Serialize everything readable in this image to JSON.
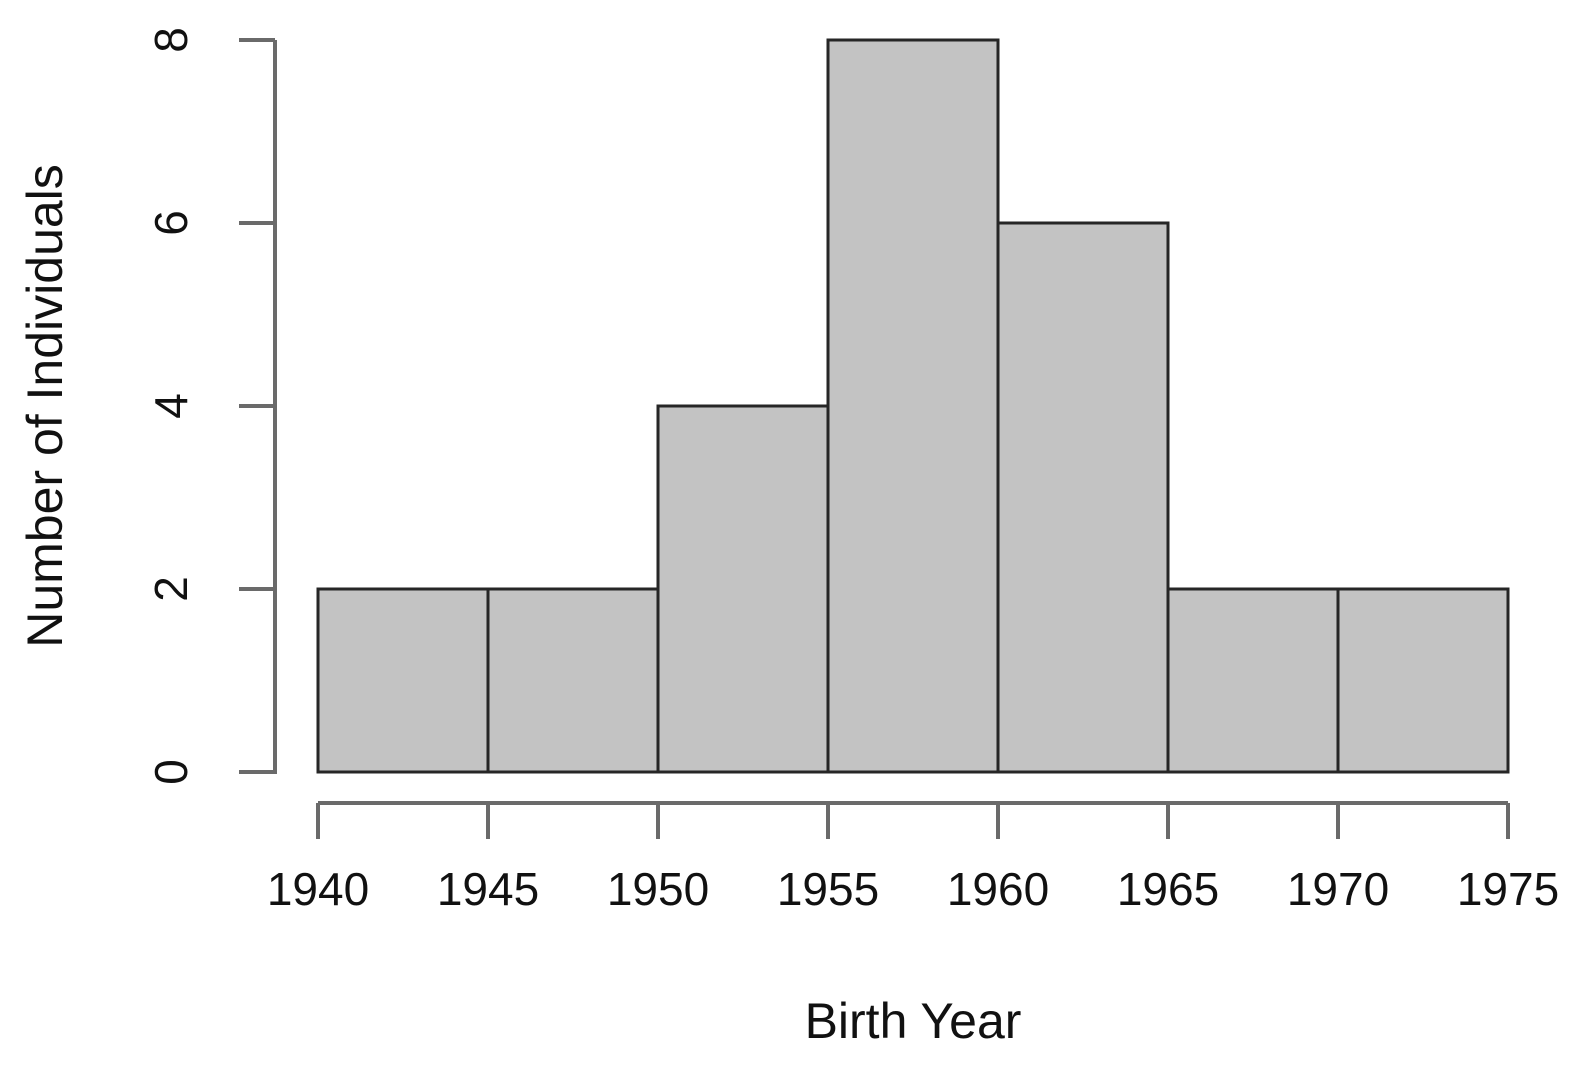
{
  "chart_data": {
    "type": "bar",
    "subtype": "histogram",
    "title": "",
    "xlabel": "Birth Year",
    "ylabel": "Number of Individuals",
    "bin_edges": [
      1940,
      1945,
      1950,
      1955,
      1960,
      1965,
      1970,
      1975
    ],
    "categories": [
      "1940-1945",
      "1945-1950",
      "1950-1955",
      "1955-1960",
      "1960-1965",
      "1965-1970",
      "1970-1975"
    ],
    "values": [
      2,
      2,
      4,
      8,
      6,
      2,
      2
    ],
    "x_ticks": [
      1940,
      1945,
      1950,
      1955,
      1960,
      1965,
      1970,
      1975
    ],
    "y_ticks": [
      0,
      2,
      4,
      6,
      8
    ],
    "xlim": [
      1940,
      1975
    ],
    "ylim": [
      0,
      8
    ],
    "grid": "off",
    "legend": "none",
    "colors": {
      "bar_fill": "#c3c3c3",
      "bar_border": "#262626",
      "axis_line": "#6a6a6a",
      "text": "#111111",
      "background": "#ffffff"
    }
  }
}
